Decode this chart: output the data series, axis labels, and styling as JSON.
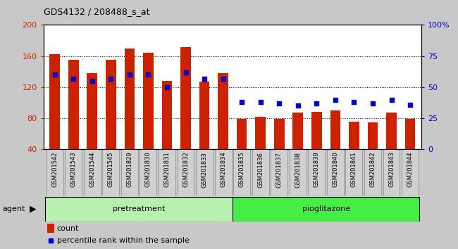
{
  "title": "GDS4132 / 208488_s_at",
  "samples": [
    "GSM201542",
    "GSM201543",
    "GSM201544",
    "GSM201545",
    "GSM201829",
    "GSM201830",
    "GSM201831",
    "GSM201832",
    "GSM201833",
    "GSM201834",
    "GSM201835",
    "GSM201836",
    "GSM201837",
    "GSM201838",
    "GSM201839",
    "GSM201840",
    "GSM201841",
    "GSM201842",
    "GSM201843",
    "GSM201844"
  ],
  "counts": [
    162,
    155,
    138,
    155,
    170,
    164,
    128,
    171,
    127,
    138,
    79,
    82,
    79,
    87,
    88,
    90,
    76,
    75,
    87,
    79
  ],
  "percentiles": [
    60,
    57,
    55,
    57,
    60,
    60,
    50,
    62,
    57,
    57,
    38,
    38,
    37,
    35,
    37,
    40,
    38,
    37,
    40,
    36
  ],
  "group_labels": [
    "pretreatment",
    "pioglitazone"
  ],
  "group_split": 10,
  "group_color1": "#B8F0B0",
  "group_color2": "#44EE44",
  "bar_color": "#CC2200",
  "dot_color": "#0000CC",
  "ylim_left": [
    40,
    200
  ],
  "ylim_right": [
    0,
    100
  ],
  "yticks_left": [
    40,
    80,
    120,
    160,
    200
  ],
  "yticks_right": [
    0,
    25,
    50,
    75,
    100
  ],
  "yticklabels_right": [
    "0",
    "25",
    "50",
    "75",
    "100%"
  ],
  "bg_color": "#C8C8C8",
  "plot_bg": "#FFFFFF",
  "agent_label": "agent"
}
